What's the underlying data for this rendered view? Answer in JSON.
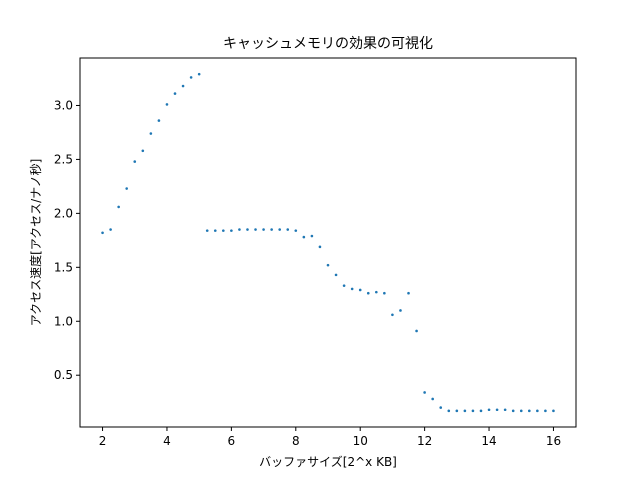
{
  "chart_data": {
    "type": "scatter",
    "title": "キャッシュメモリの効果の可視化",
    "xlabel": "バッファサイズ[2^x KB]",
    "ylabel": "アクセス速度[アクセス/ナノ秒]",
    "xlim": [
      1.3,
      16.7
    ],
    "ylim": [
      0.02,
      3.44
    ],
    "xticks": [
      2,
      4,
      6,
      8,
      10,
      12,
      14,
      16
    ],
    "yticks": [
      0.5,
      1.0,
      1.5,
      2.0,
      2.5,
      3.0
    ],
    "xtick_labels": [
      "2",
      "4",
      "6",
      "8",
      "10",
      "12",
      "14",
      "16"
    ],
    "ytick_labels": [
      "0.5",
      "1.0",
      "1.5",
      "2.0",
      "2.5",
      "3.0"
    ],
    "grid": false,
    "marker_color": "#1f77b4",
    "series": [
      {
        "x": [
          2,
          2.25,
          2.5,
          2.75,
          3,
          3.25,
          3.5,
          3.75,
          4,
          4.25,
          4.5,
          4.75,
          5,
          5.25,
          5.5,
          5.75,
          6,
          6.25,
          6.5,
          6.75,
          7,
          7.25,
          7.5,
          7.75,
          8,
          8.25,
          8.5,
          8.75,
          9,
          9.25,
          9.5,
          9.75,
          10,
          10.25,
          10.5,
          10.75,
          11,
          11.25,
          11.5,
          11.75,
          12,
          12.25,
          12.5,
          12.75,
          13,
          13.25,
          13.5,
          13.75,
          14,
          14.25,
          14.5,
          14.75,
          15,
          15.25,
          15.5,
          15.75,
          16
        ],
        "y": [
          1.82,
          1.85,
          2.06,
          2.23,
          2.48,
          2.58,
          2.74,
          2.86,
          3.01,
          3.11,
          3.18,
          3.26,
          3.29,
          1.84,
          1.84,
          1.84,
          1.84,
          1.85,
          1.85,
          1.85,
          1.85,
          1.85,
          1.85,
          1.85,
          1.84,
          1.78,
          1.79,
          1.69,
          1.52,
          1.43,
          1.33,
          1.3,
          1.29,
          1.26,
          1.27,
          1.26,
          1.06,
          1.1,
          1.26,
          0.91,
          0.34,
          0.28,
          0.2,
          0.17,
          0.17,
          0.17,
          0.17,
          0.17,
          0.18,
          0.18,
          0.18,
          0.17,
          0.17,
          0.17,
          0.17,
          0.17,
          0.17
        ]
      }
    ]
  }
}
